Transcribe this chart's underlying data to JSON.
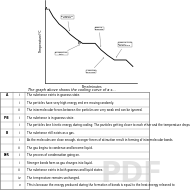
{
  "title": "Cooling Curve: The Graph Above Shows The Cooling Curve of A Substance",
  "bg_color": "#ffffff",
  "graph_title": "Temperature/°C",
  "x_axis_label": "Time/minutes",
  "table_rows": [
    {
      "label": "A",
      "sub": "i",
      "text": "The substance exists in gaseous state."
    },
    {
      "label": "",
      "sub": "ii",
      "text": "The particles have very high energy and are moving randomly."
    },
    {
      "label": "",
      "sub": "iii",
      "text": "The intermolecular forces between the particles are very weak and can be ignored."
    },
    {
      "label": "P-B",
      "sub": "i",
      "text": "The substance is in gaseous state."
    },
    {
      "label": "",
      "sub": "ii",
      "text": "The particles lose kinetic energy during cooling. The particles getting closer to each other and the temperature drops."
    },
    {
      "label": "B",
      "sub": "i",
      "text": "The substance still exists as a gas."
    },
    {
      "label": "",
      "sub": "ii",
      "text": "As the molecules are close enough, stronger forces of attraction result in forming of intermolecular bonds."
    },
    {
      "label": "",
      "sub": "iii",
      "text": "The gas begins to condense and become liquid."
    },
    {
      "label": "B-R",
      "sub": "i",
      "text": "The process of condensation going on."
    },
    {
      "label": "",
      "sub": "ii",
      "text": "Stronger bonds form as gas changes into liquid."
    },
    {
      "label": "",
      "sub": "iii",
      "text": "The substance exists in both gaseous and liquid states."
    },
    {
      "label": "",
      "sub": "iv",
      "text": "The temperature remains unchanged."
    },
    {
      "label": "",
      "sub": "v",
      "text": "This is because the energy produced during the formation of bonds is equal to the heat energy released to"
    }
  ]
}
